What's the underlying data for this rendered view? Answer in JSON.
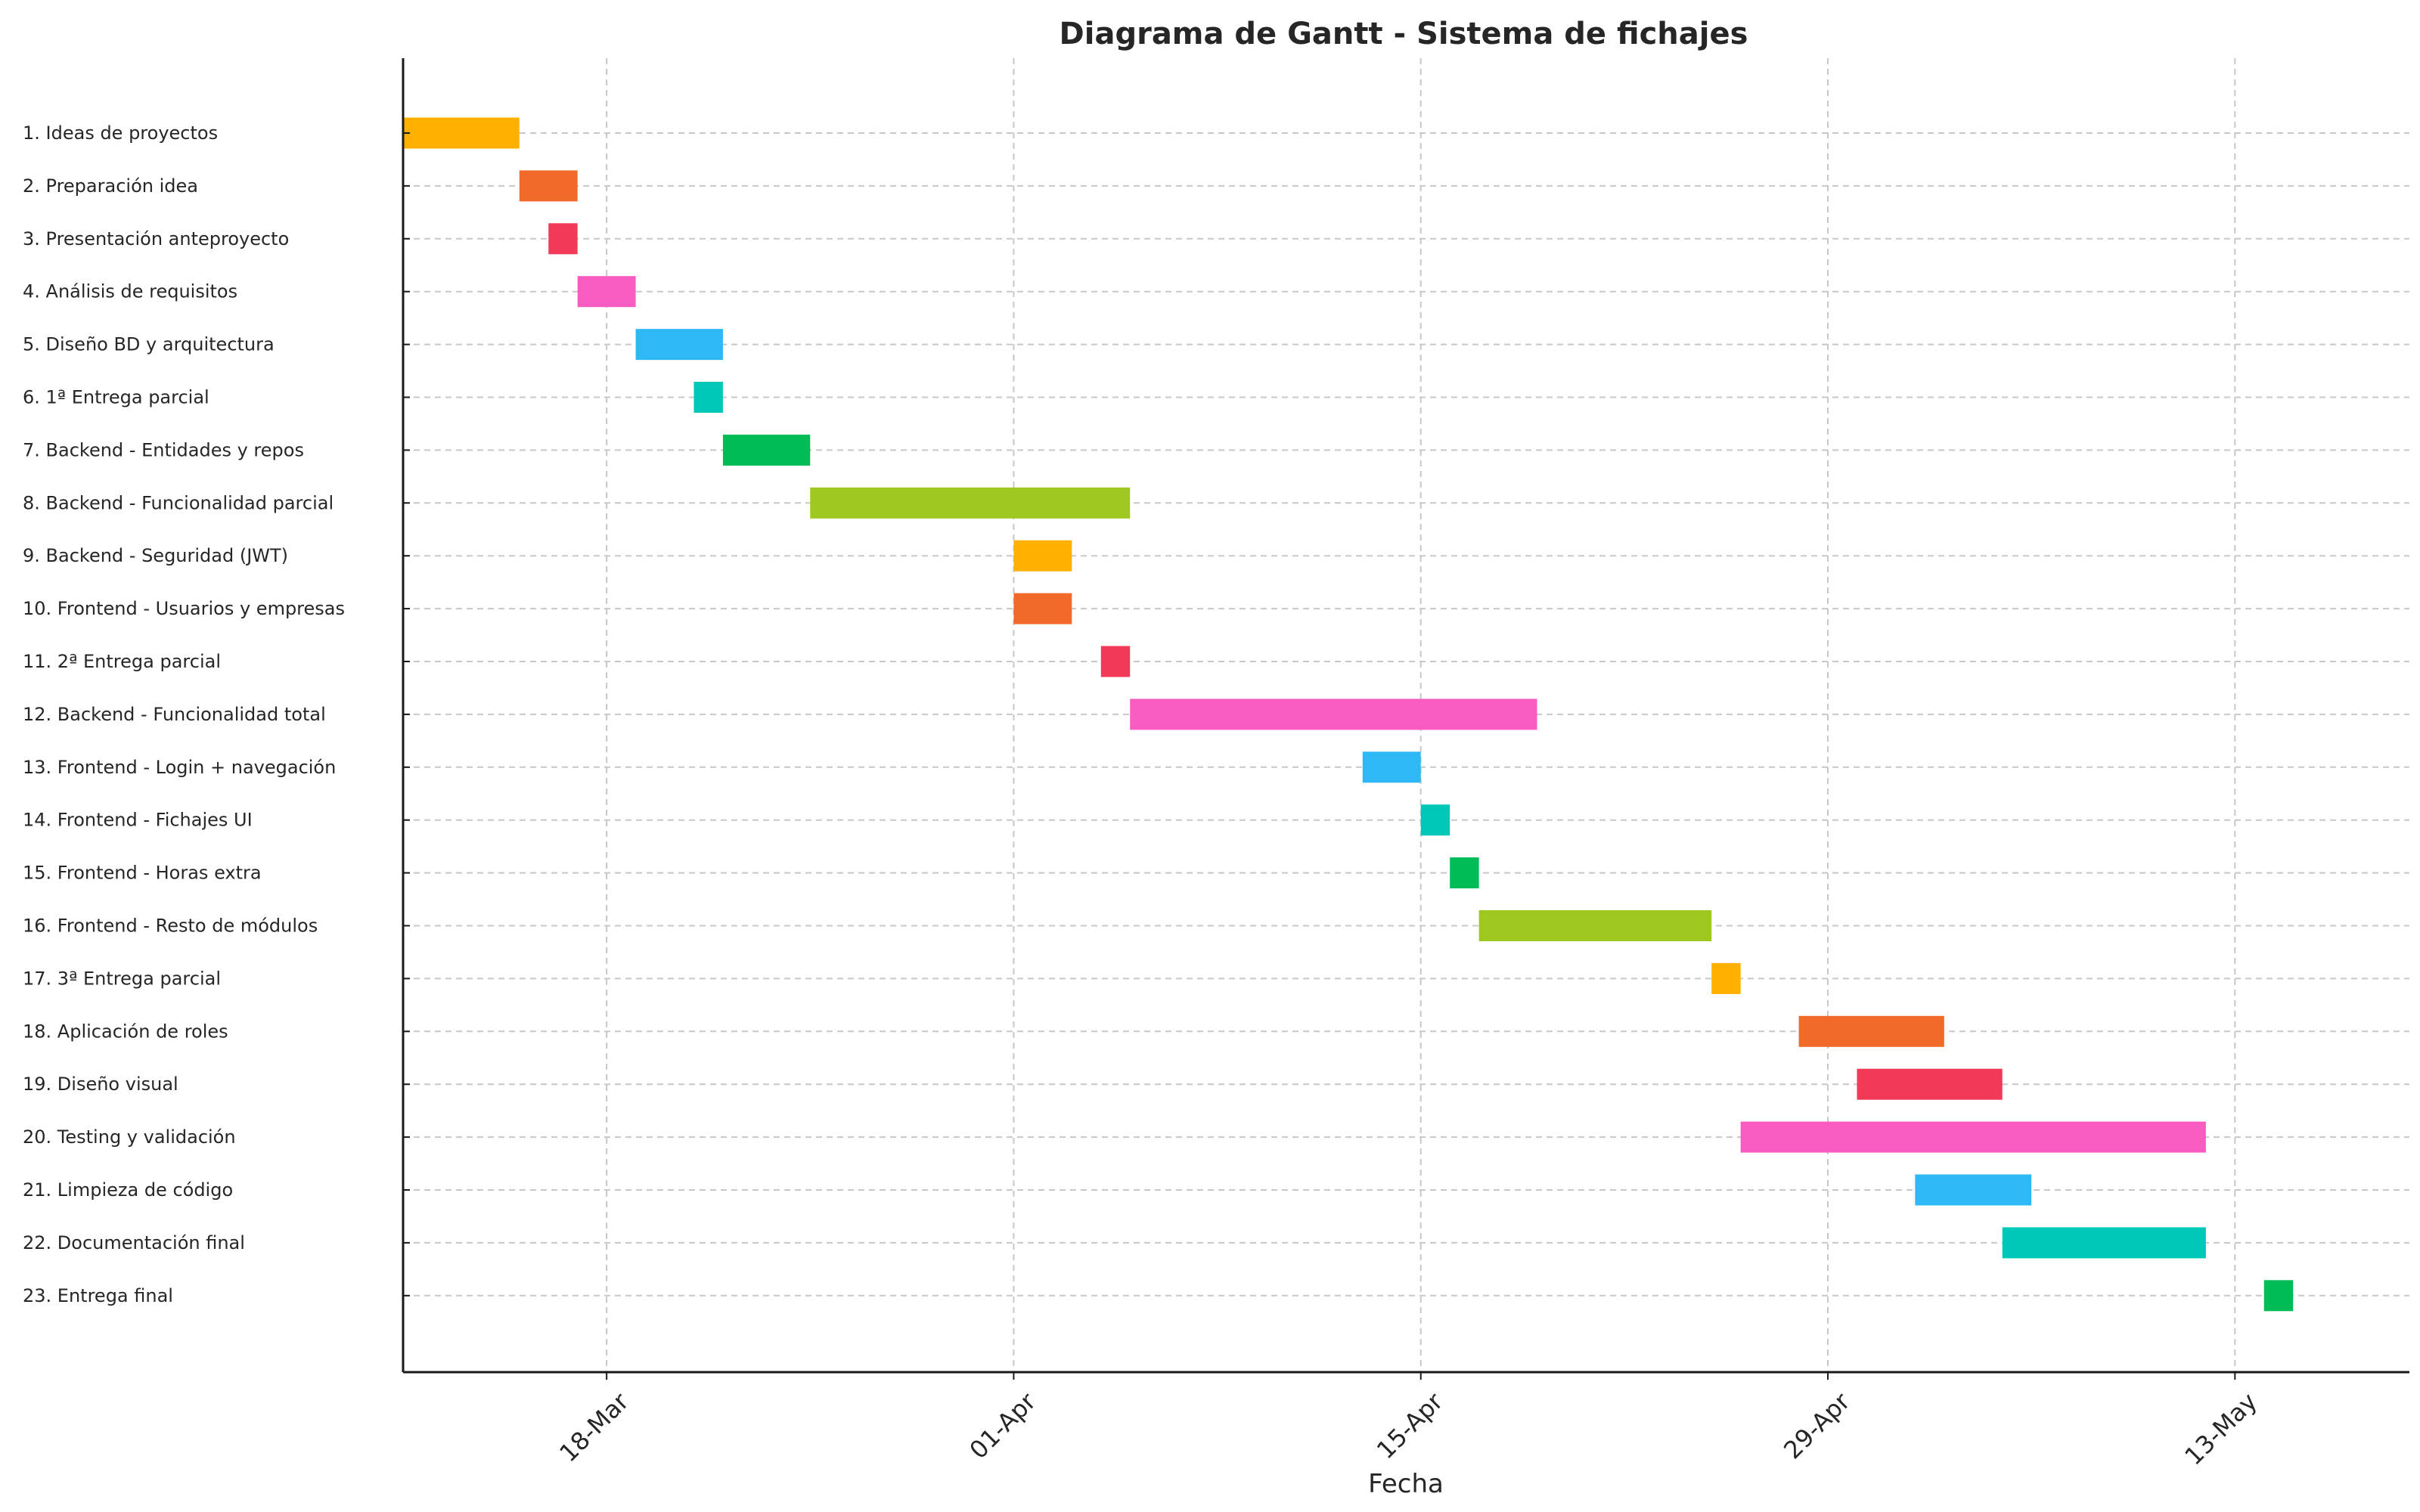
{
  "chart_data": {
    "type": "gantt",
    "title": "Diagrama de Gantt - Sistema de fichajes",
    "xlabel": "Fecha",
    "ylabel": "",
    "xlim": [
      "2025-03-11",
      "2025-05-19"
    ],
    "x_ticks": [
      {
        "date": "2025-03-18",
        "label": "18-Mar"
      },
      {
        "date": "2025-04-01",
        "label": "01-Apr"
      },
      {
        "date": "2025-04-15",
        "label": "15-Apr"
      },
      {
        "date": "2025-04-29",
        "label": "29-Apr"
      },
      {
        "date": "2025-05-13",
        "label": "13-May"
      }
    ],
    "grid": true,
    "colors": [
      "#FFB000",
      "#F26A2A",
      "#F23A58",
      "#F85CC1",
      "#2EB8F5",
      "#00C8B8",
      "#00BC56",
      "#9EC820"
    ],
    "tasks": [
      {
        "label": "1. Ideas de proyectos",
        "start": "2025-03-11",
        "end": "2025-03-15"
      },
      {
        "label": "2. Preparación idea",
        "start": "2025-03-15",
        "end": "2025-03-17"
      },
      {
        "label": "3. Presentación anteproyecto",
        "start": "2025-03-16",
        "end": "2025-03-17"
      },
      {
        "label": "4. Análisis de requisitos",
        "start": "2025-03-17",
        "end": "2025-03-19"
      },
      {
        "label": "5. Diseño BD y arquitectura",
        "start": "2025-03-19",
        "end": "2025-03-22"
      },
      {
        "label": "6. 1ª Entrega parcial",
        "start": "2025-03-21",
        "end": "2025-03-22"
      },
      {
        "label": "7. Backend - Entidades y repos",
        "start": "2025-03-22",
        "end": "2025-03-25"
      },
      {
        "label": "8. Backend - Funcionalidad parcial",
        "start": "2025-03-25",
        "end": "2025-04-05"
      },
      {
        "label": "9. Backend - Seguridad (JWT)",
        "start": "2025-04-01",
        "end": "2025-04-03"
      },
      {
        "label": "10. Frontend - Usuarios y empresas",
        "start": "2025-04-01",
        "end": "2025-04-03"
      },
      {
        "label": "11. 2ª Entrega parcial",
        "start": "2025-04-04",
        "end": "2025-04-05"
      },
      {
        "label": "12. Backend - Funcionalidad total",
        "start": "2025-04-05",
        "end": "2025-04-19"
      },
      {
        "label": "13. Frontend - Login + navegación",
        "start": "2025-04-13",
        "end": "2025-04-15"
      },
      {
        "label": "14. Frontend - Fichajes UI",
        "start": "2025-04-15",
        "end": "2025-04-16"
      },
      {
        "label": "15. Frontend - Horas extra",
        "start": "2025-04-16",
        "end": "2025-04-17"
      },
      {
        "label": "16. Frontend - Resto de módulos",
        "start": "2025-04-17",
        "end": "2025-04-25"
      },
      {
        "label": "17. 3ª Entrega parcial",
        "start": "2025-04-25",
        "end": "2025-04-26"
      },
      {
        "label": "18. Aplicación de roles",
        "start": "2025-04-28",
        "end": "2025-05-03"
      },
      {
        "label": "19. Diseño visual",
        "start": "2025-04-30",
        "end": "2025-05-05"
      },
      {
        "label": "20. Testing y validación",
        "start": "2025-04-26",
        "end": "2025-05-12"
      },
      {
        "label": "21. Limpieza de código",
        "start": "2025-05-02",
        "end": "2025-05-06"
      },
      {
        "label": "22. Documentación final",
        "start": "2025-05-05",
        "end": "2025-05-12"
      },
      {
        "label": "23. Entrega final",
        "start": "2025-05-14",
        "end": "2025-05-15"
      }
    ]
  }
}
